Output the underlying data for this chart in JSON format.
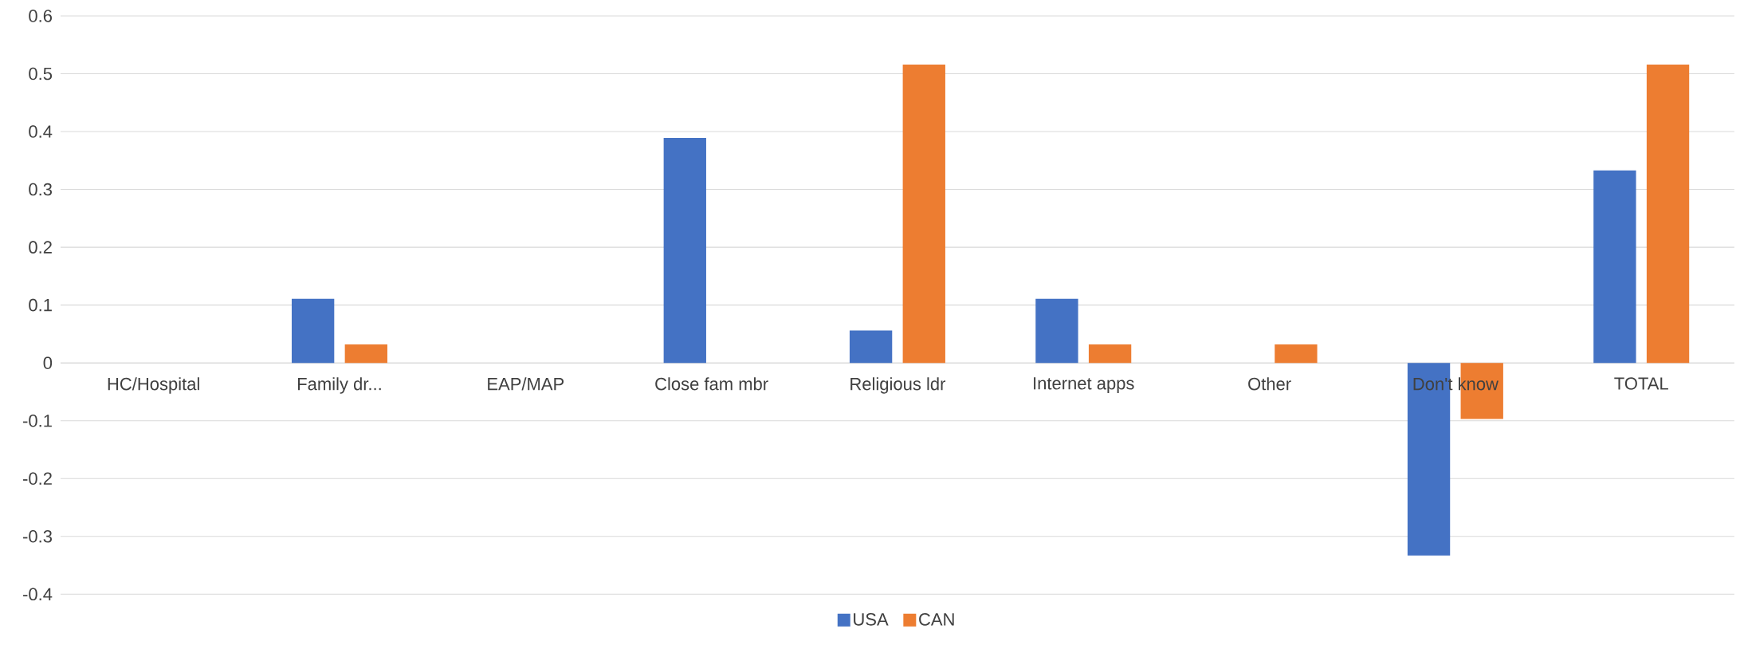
{
  "chart_data": {
    "type": "bar",
    "categories": [
      "HC/Hospital",
      "Family dr...",
      "EAP/MAP",
      "Close fam mbr",
      "Religious ldr",
      "Internet apps",
      "Other",
      "Don't know",
      "TOTAL"
    ],
    "series": [
      {
        "name": "USA",
        "color": "#4472c4",
        "values": [
          0,
          0.111,
          0,
          0.389,
          0.056,
          0.111,
          0,
          -0.333,
          0.333
        ]
      },
      {
        "name": "CAN",
        "color": "#ed7d31",
        "values": [
          0,
          0.032,
          0,
          0,
          0.516,
          0.032,
          0.032,
          -0.097,
          0.516
        ]
      }
    ],
    "ylim": [
      -0.4,
      0.6
    ],
    "yticks": [
      -0.4,
      -0.3,
      -0.2,
      -0.1,
      0,
      0.1,
      0.2,
      0.3,
      0.4,
      0.5,
      0.6
    ],
    "grid": "y",
    "legend": "bottom"
  }
}
